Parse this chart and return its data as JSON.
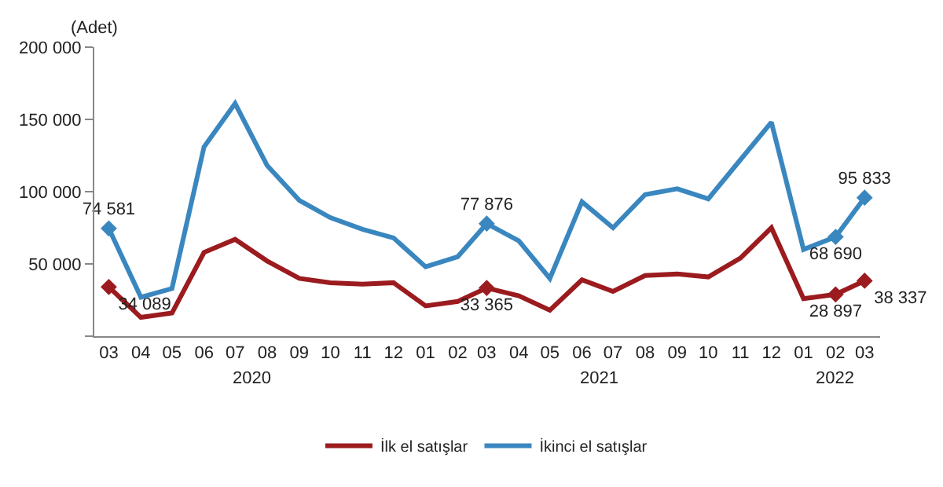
{
  "chart_data": {
    "type": "line",
    "ylabel": "(Adet)",
    "x": [
      "2020-03",
      "2020-04",
      "2020-05",
      "2020-06",
      "2020-07",
      "2020-08",
      "2020-09",
      "2020-10",
      "2020-11",
      "2020-12",
      "2021-01",
      "2021-02",
      "2021-03",
      "2021-04",
      "2021-05",
      "2021-06",
      "2021-07",
      "2021-08",
      "2021-09",
      "2021-10",
      "2021-11",
      "2021-12",
      "2022-01",
      "2022-02",
      "2022-03"
    ],
    "xlim": [
      "2020-02-16",
      "2022-03-16"
    ],
    "xticks": [
      {
        "value": "2020-03",
        "label": "03"
      },
      {
        "value": "2020-04",
        "label": "04"
      },
      {
        "value": "2020-05",
        "label": "05"
      },
      {
        "value": "2020-06",
        "label": "06"
      },
      {
        "value": "2020-07",
        "label": "07"
      },
      {
        "value": "2020-08",
        "label": "08"
      },
      {
        "value": "2020-09",
        "label": "09"
      },
      {
        "value": "2020-10",
        "label": "10"
      },
      {
        "value": "2020-11",
        "label": "11"
      },
      {
        "value": "2020-12",
        "label": "12"
      },
      {
        "value": "2021-01",
        "label": "01"
      },
      {
        "value": "2021-02",
        "label": "02"
      },
      {
        "value": "2021-03",
        "label": "03"
      },
      {
        "value": "2021-04",
        "label": "04"
      },
      {
        "value": "2021-05",
        "label": "05"
      },
      {
        "value": "2021-06",
        "label": "06"
      },
      {
        "value": "2021-07",
        "label": "07"
      },
      {
        "value": "2021-08",
        "label": "08"
      },
      {
        "value": "2021-09",
        "label": "09"
      },
      {
        "value": "2021-10",
        "label": "10"
      },
      {
        "value": "2021-11",
        "label": "11"
      },
      {
        "value": "2021-12",
        "label": "12"
      },
      {
        "value": "2022-01",
        "label": "01"
      },
      {
        "value": "2022-02",
        "label": "02"
      },
      {
        "value": "2022-03",
        "label": "03"
      }
    ],
    "ylim": [
      0,
      200000
    ],
    "yticks": [
      {
        "value": 0,
        "label": null
      },
      {
        "value": 50000,
        "label": "50 000"
      },
      {
        "value": 100000,
        "label": "100 000"
      },
      {
        "value": 150000,
        "label": "150 000"
      },
      {
        "value": 200000,
        "label": "200 000"
      }
    ],
    "annotations": [
      "2020",
      "2021",
      "2022"
    ],
    "legend": "bottom",
    "line_style": "solid",
    "series": [
      {
        "name": "İlk el satışlar",
        "color": "#9b1b1e",
        "values": [
          34089,
          13000,
          16000,
          58000,
          67000,
          52000,
          40000,
          37000,
          36000,
          37000,
          21000,
          24000,
          33365,
          28000,
          18000,
          39000,
          31000,
          42000,
          43000,
          41000,
          54000,
          75000,
          26000,
          28897,
          38337
        ],
        "value_labels": [
          "34 089",
          null,
          null,
          null,
          null,
          null,
          null,
          null,
          null,
          null,
          null,
          null,
          "33 365",
          null,
          null,
          null,
          null,
          null,
          null,
          null,
          null,
          null,
          null,
          "28 897",
          "38 337"
        ]
      },
      {
        "name": "İkinci el satışlar",
        "color": "#3a87c0",
        "values": [
          74581,
          27000,
          33000,
          131000,
          161000,
          118000,
          94000,
          82000,
          74000,
          68000,
          48000,
          55000,
          77876,
          66000,
          40000,
          93000,
          75000,
          98000,
          102000,
          95000,
          122000,
          148000,
          60000,
          68690,
          95833
        ],
        "value_labels": [
          "74 581",
          null,
          null,
          null,
          null,
          null,
          null,
          null,
          null,
          null,
          null,
          null,
          "77 876",
          null,
          null,
          null,
          null,
          null,
          null,
          null,
          null,
          null,
          null,
          "68 690",
          "95 833"
        ]
      }
    ]
  }
}
